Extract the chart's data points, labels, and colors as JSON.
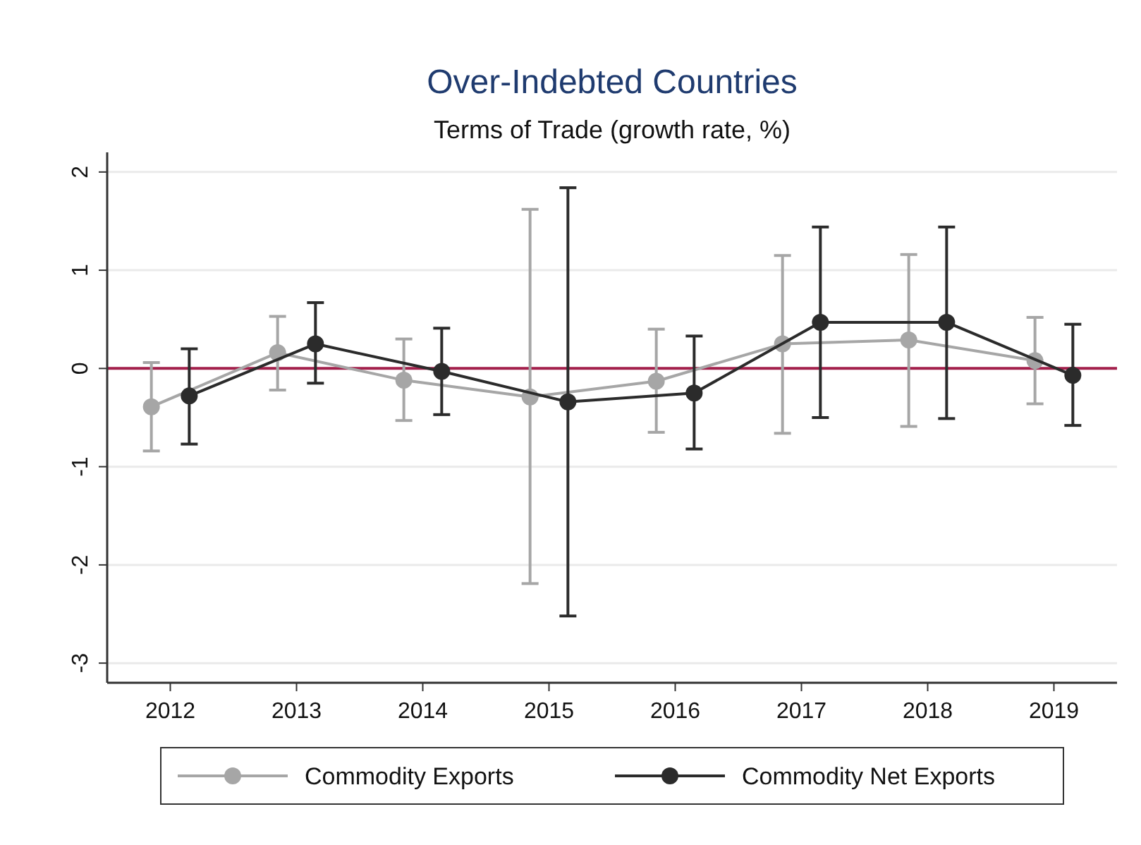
{
  "chart_data": {
    "type": "line",
    "title": "Over-Indebted Countries",
    "subtitle": "Terms of Trade (growth rate, %)",
    "xlim": [
      2011.5,
      2019.5
    ],
    "xticks": [
      2012,
      2013,
      2014,
      2015,
      2016,
      2017,
      2018,
      2019
    ],
    "ylim": [
      -3.2,
      2.2
    ],
    "yticks": [
      -3,
      -2,
      -1,
      0,
      1,
      2
    ],
    "grid": "y",
    "legend": "bottom",
    "marker": "circle",
    "line_style": "solid",
    "ref_lines": [
      {
        "axis": "y",
        "value": 0,
        "color": "#a3204c"
      }
    ],
    "series": [
      {
        "name": "Commodity Exports",
        "color": "#a6a6a6",
        "x": [
          2011.85,
          2012.85,
          2013.85,
          2014.85,
          2015.85,
          2016.85,
          2017.85,
          2018.85
        ],
        "values": [
          -0.39,
          0.16,
          -0.12,
          -0.29,
          -0.13,
          0.25,
          0.29,
          0.08
        ],
        "errors": [
          [
            -0.84,
            0.06
          ],
          [
            -0.22,
            0.53
          ],
          [
            -0.53,
            0.3
          ],
          [
            -2.19,
            1.62
          ],
          [
            -0.65,
            0.4
          ],
          [
            -0.66,
            1.15
          ],
          [
            -0.59,
            1.16
          ],
          [
            -0.36,
            0.52
          ]
        ]
      },
      {
        "name": "Commodity Net Exports",
        "color": "#2b2b2b",
        "x": [
          2012.15,
          2013.15,
          2014.15,
          2015.15,
          2016.15,
          2017.15,
          2018.15,
          2019.15
        ],
        "values": [
          -0.28,
          0.25,
          -0.03,
          -0.34,
          -0.25,
          0.47,
          0.47,
          -0.07
        ],
        "errors": [
          [
            -0.77,
            0.2
          ],
          [
            -0.15,
            0.67
          ],
          [
            -0.47,
            0.41
          ],
          [
            -2.52,
            1.84
          ],
          [
            -0.82,
            0.33
          ],
          [
            -0.5,
            1.44
          ],
          [
            -0.51,
            1.44
          ],
          [
            -0.58,
            0.45
          ]
        ]
      }
    ]
  }
}
